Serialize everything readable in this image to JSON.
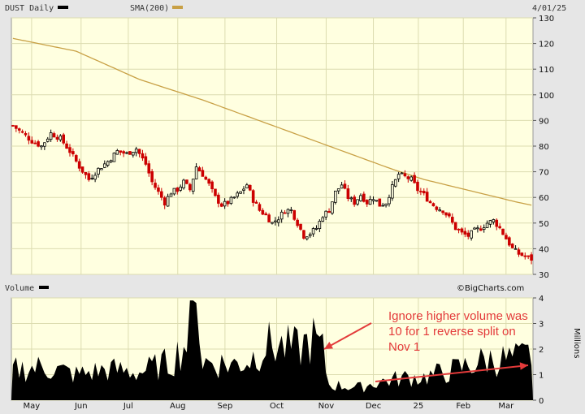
{
  "chart_data": [
    {
      "type": "candlestick",
      "symbol_label": "DUST Daily",
      "indicator_label": "SMA(200)",
      "date_label": "4/01/25",
      "watermark": "©BigCharts.com",
      "colors": {
        "up": "#000000",
        "down": "#cc0000",
        "sma": "#c8a045",
        "bg": "#ffffe0",
        "grid": "#dcdcb0"
      },
      "y_ticks": [
        30,
        40,
        50,
        60,
        70,
        80,
        90,
        100,
        110,
        120,
        130
      ],
      "ylim": [
        30,
        130
      ],
      "x_months": [
        "May",
        "Jun",
        "Jul",
        "Aug",
        "Sep",
        "Oct",
        "Nov",
        "Dec",
        "25",
        "Feb",
        "Mar"
      ],
      "close_anchors": [
        [
          0,
          88
        ],
        [
          3,
          85
        ],
        [
          6,
          82
        ],
        [
          9,
          80
        ],
        [
          12,
          85
        ],
        [
          15,
          83
        ],
        [
          18,
          78
        ],
        [
          21,
          72
        ],
        [
          24,
          67
        ],
        [
          27,
          71
        ],
        [
          30,
          74
        ],
        [
          33,
          78
        ],
        [
          36,
          77
        ],
        [
          39,
          79
        ],
        [
          42,
          73
        ],
        [
          44,
          66
        ],
        [
          46,
          62
        ],
        [
          48,
          58
        ],
        [
          50,
          62
        ],
        [
          52,
          63
        ],
        [
          54,
          66
        ],
        [
          56,
          63
        ],
        [
          58,
          72
        ],
        [
          60,
          69
        ],
        [
          62,
          65
        ],
        [
          64,
          60
        ],
        [
          66,
          57
        ],
        [
          68,
          58
        ],
        [
          70,
          60
        ],
        [
          72,
          62
        ],
        [
          74,
          65
        ],
        [
          76,
          59
        ],
        [
          78,
          55
        ],
        [
          80,
          53
        ],
        [
          82,
          50
        ],
        [
          84,
          52
        ],
        [
          86,
          55
        ],
        [
          88,
          55
        ],
        [
          90,
          50
        ],
        [
          92,
          45
        ],
        [
          94,
          46
        ],
        [
          96,
          48
        ],
        [
          98,
          53
        ],
        [
          100,
          55
        ],
        [
          102,
          62
        ],
        [
          104,
          65
        ],
        [
          106,
          60
        ],
        [
          108,
          58
        ],
        [
          110,
          61
        ],
        [
          112,
          58
        ],
        [
          114,
          60
        ],
        [
          116,
          57
        ],
        [
          118,
          58
        ],
        [
          120,
          64
        ],
        [
          122,
          69
        ],
        [
          124,
          68
        ],
        [
          126,
          67
        ],
        [
          128,
          63
        ],
        [
          130,
          61
        ],
        [
          132,
          58
        ],
        [
          134,
          56
        ],
        [
          136,
          55
        ],
        [
          138,
          52
        ],
        [
          140,
          48
        ],
        [
          142,
          46
        ],
        [
          144,
          45
        ],
        [
          146,
          47
        ],
        [
          148,
          48
        ],
        [
          150,
          50
        ],
        [
          152,
          51
        ],
        [
          154,
          48
        ],
        [
          156,
          44
        ],
        [
          158,
          40
        ],
        [
          160,
          38
        ],
        [
          162,
          37
        ],
        [
          164,
          36
        ]
      ],
      "sma_anchors": [
        [
          0,
          122
        ],
        [
          20,
          117
        ],
        [
          40,
          106
        ],
        [
          60,
          98
        ],
        [
          80,
          89
        ],
        [
          100,
          80
        ],
        [
          120,
          71
        ],
        [
          130,
          67
        ],
        [
          140,
          64
        ],
        [
          150,
          61
        ],
        [
          160,
          58
        ],
        [
          164,
          57
        ]
      ],
      "volume": {
        "label": "Volume",
        "units_label": "Millions",
        "y_ticks": [
          0,
          1,
          2,
          3,
          4
        ],
        "ylim": [
          0,
          4
        ],
        "anchors": [
          [
            0,
            1.2
          ],
          [
            10,
            1.3
          ],
          [
            20,
            1.0
          ],
          [
            30,
            1.2
          ],
          [
            40,
            1.1
          ],
          [
            50,
            1.5
          ],
          [
            55,
            2.3
          ],
          [
            58,
            3.8
          ],
          [
            60,
            1.5
          ],
          [
            70,
            1.4
          ],
          [
            75,
            1.6
          ],
          [
            80,
            2.2
          ],
          [
            90,
            2.0
          ],
          [
            95,
            2.4
          ],
          [
            98,
            1.9
          ],
          [
            100,
            0.6
          ],
          [
            110,
            0.5
          ],
          [
            115,
            0.7
          ],
          [
            120,
            0.8
          ],
          [
            125,
            0.9
          ],
          [
            130,
            0.9
          ],
          [
            140,
            1.2
          ],
          [
            150,
            1.6
          ],
          [
            160,
            1.6
          ],
          [
            164,
            1.8
          ]
        ]
      },
      "annotation": [
        "Ignore higher volume was",
        "10 for 1 reverse split on",
        "Nov 1"
      ]
    }
  ]
}
